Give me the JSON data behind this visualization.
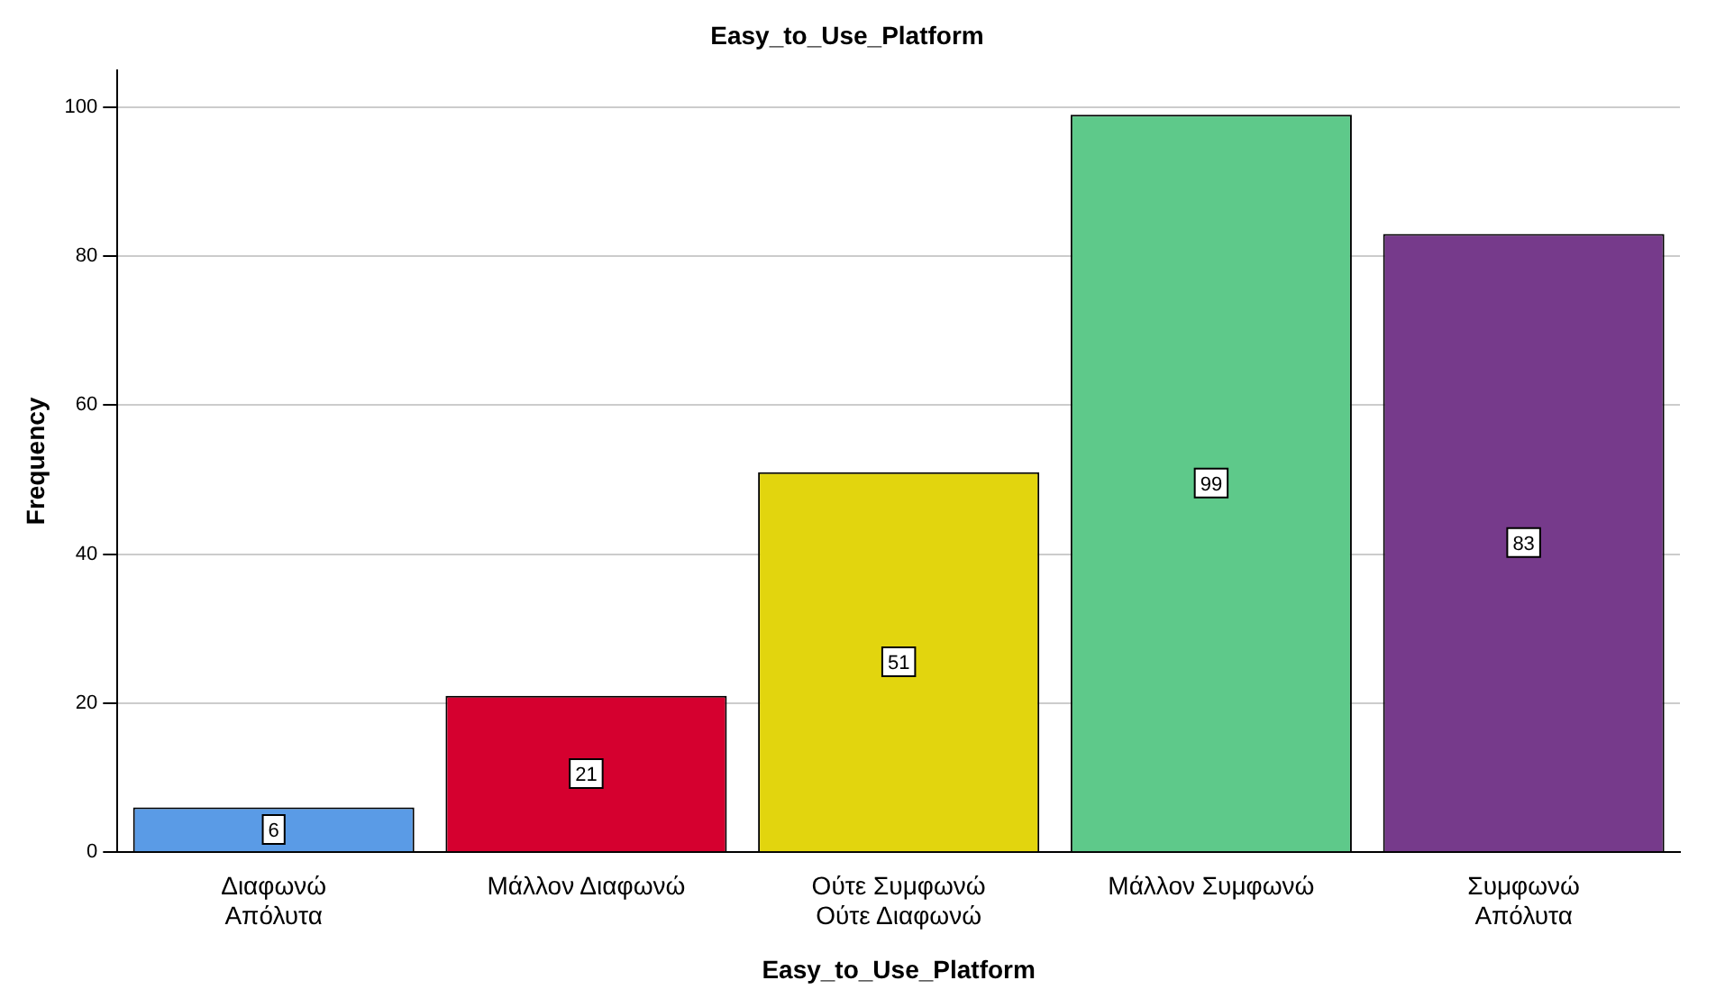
{
  "chart_data": {
    "type": "bar",
    "title": "Easy_to_Use_Platform",
    "xlabel": "Easy_to_Use_Platform",
    "ylabel": "Frequency",
    "categories": [
      "Διαφωνώ\nΑπόλυτα",
      "Μάλλον Διαφωνώ",
      "Ούτε Συμφωνώ\nΟύτε Διαφωνώ",
      "Μάλλον Συμφωνώ",
      "Συμφωνώ\nΑπόλυτα"
    ],
    "values": [
      6,
      21,
      51,
      99,
      83
    ],
    "colors": [
      "#5a9be6",
      "#d5002f",
      "#e2d50e",
      "#5ec98a",
      "#763a8b"
    ],
    "ylim": [
      0,
      105
    ],
    "yticks": [
      0,
      20,
      40,
      60,
      80,
      100
    ],
    "grid": "y",
    "data_labels": true,
    "legend": false
  }
}
